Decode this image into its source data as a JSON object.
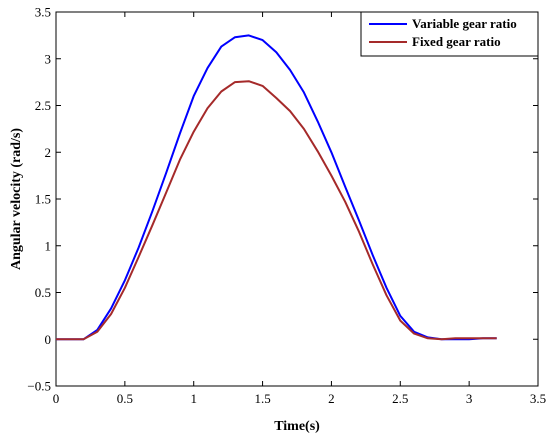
{
  "chart_data": {
    "type": "line",
    "xlabel": "Time(s)",
    "ylabel": "Angular velocity (rad/s)",
    "xlim": [
      0,
      3.5
    ],
    "ylim": [
      -0.5,
      3.5
    ],
    "xticks": [
      "0",
      "0.5",
      "1",
      "1.5",
      "2",
      "2.5",
      "3",
      "3.5"
    ],
    "yticks": [
      "−0.5",
      "0",
      "0.5",
      "1",
      "1.5",
      "2",
      "2.5",
      "3",
      "3.5"
    ],
    "grid": false,
    "legend_position": "top-right",
    "x": [
      0,
      0.1,
      0.2,
      0.3,
      0.4,
      0.5,
      0.6,
      0.7,
      0.8,
      0.9,
      1.0,
      1.1,
      1.2,
      1.3,
      1.4,
      1.5,
      1.6,
      1.7,
      1.8,
      1.9,
      2.0,
      2.1,
      2.2,
      2.3,
      2.4,
      2.5,
      2.6,
      2.7,
      2.8,
      2.9,
      3.0,
      3.1,
      3.2
    ],
    "series": [
      {
        "name": "Variable gear ratio",
        "color": "#0000ff",
        "values": [
          0,
          0,
          0,
          0.1,
          0.33,
          0.63,
          0.98,
          1.37,
          1.78,
          2.2,
          2.6,
          2.9,
          3.13,
          3.23,
          3.25,
          3.2,
          3.07,
          2.88,
          2.64,
          2.33,
          2.0,
          1.63,
          1.27,
          0.9,
          0.55,
          0.25,
          0.08,
          0.02,
          0,
          0,
          0,
          0.01,
          0.01
        ]
      },
      {
        "name": "Fixed gear ratio",
        "color": "#a52a2a",
        "values": [
          0,
          0,
          0,
          0.08,
          0.27,
          0.55,
          0.88,
          1.22,
          1.57,
          1.92,
          2.22,
          2.47,
          2.65,
          2.75,
          2.76,
          2.71,
          2.58,
          2.44,
          2.25,
          2.01,
          1.75,
          1.47,
          1.15,
          0.8,
          0.47,
          0.2,
          0.06,
          0.01,
          0,
          0.01,
          0.01,
          0.01,
          0.01
        ]
      }
    ]
  }
}
